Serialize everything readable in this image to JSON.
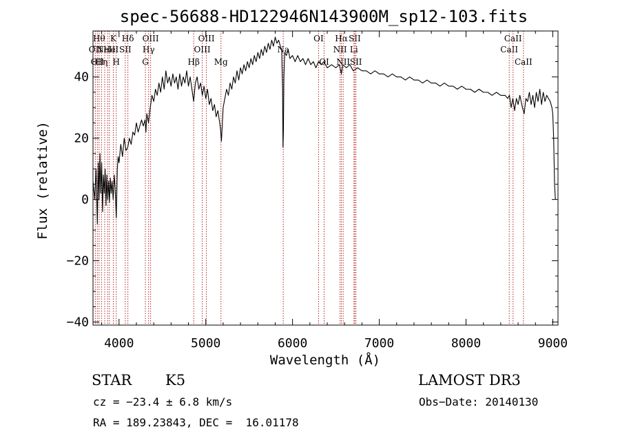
{
  "chart_data": {
    "type": "line",
    "title": "spec-56688-HD122946N143900M_sp12-103.fits",
    "xlabel": "Wavelength (Å)",
    "ylabel": "Flux (relative)",
    "xlim": [
      3700,
      9060
    ],
    "ylim": [
      -41,
      55
    ],
    "x_ticks": [
      4000,
      5000,
      6000,
      7000,
      8000,
      9000
    ],
    "x_tick_labels": [
      "4000",
      "5000",
      "6000",
      "7000",
      "8000",
      "9000"
    ],
    "y_ticks": [
      -40,
      -20,
      0,
      20,
      40
    ],
    "y_tick_labels": [
      "−40",
      "−20",
      "0",
      "20",
      "40"
    ],
    "series": [
      {
        "name": "flux",
        "points": [
          [
            3700,
            6
          ],
          [
            3720,
            0
          ],
          [
            3735,
            10
          ],
          [
            3750,
            -8
          ],
          [
            3760,
            12
          ],
          [
            3770,
            0
          ],
          [
            3780,
            15
          ],
          [
            3790,
            2
          ],
          [
            3800,
            12
          ],
          [
            3810,
            -4
          ],
          [
            3820,
            8
          ],
          [
            3830,
            2
          ],
          [
            3840,
            10
          ],
          [
            3850,
            -2
          ],
          [
            3860,
            8
          ],
          [
            3870,
            0
          ],
          [
            3880,
            6
          ],
          [
            3890,
            -1
          ],
          [
            3900,
            7
          ],
          [
            3910,
            2
          ],
          [
            3920,
            6
          ],
          [
            3933,
            0
          ],
          [
            3945,
            8
          ],
          [
            3955,
            4
          ],
          [
            3968,
            -6
          ],
          [
            3980,
            10
          ],
          [
            3990,
            14
          ],
          [
            4000,
            12
          ],
          [
            4020,
            18
          ],
          [
            4040,
            14
          ],
          [
            4060,
            20
          ],
          [
            4080,
            16
          ],
          [
            4100,
            17
          ],
          [
            4120,
            20
          ],
          [
            4140,
            18
          ],
          [
            4160,
            22
          ],
          [
            4180,
            21
          ],
          [
            4200,
            25
          ],
          [
            4220,
            22
          ],
          [
            4240,
            24
          ],
          [
            4260,
            26
          ],
          [
            4280,
            24
          ],
          [
            4300,
            26
          ],
          [
            4310,
            22
          ],
          [
            4320,
            28
          ],
          [
            4340,
            25
          ],
          [
            4360,
            30
          ],
          [
            4380,
            34
          ],
          [
            4400,
            32
          ],
          [
            4420,
            36
          ],
          [
            4440,
            34
          ],
          [
            4460,
            38
          ],
          [
            4480,
            35
          ],
          [
            4500,
            40
          ],
          [
            4520,
            36
          ],
          [
            4540,
            42
          ],
          [
            4560,
            38
          ],
          [
            4580,
            40
          ],
          [
            4600,
            37
          ],
          [
            4620,
            41
          ],
          [
            4640,
            38
          ],
          [
            4660,
            40
          ],
          [
            4680,
            36
          ],
          [
            4700,
            41
          ],
          [
            4720,
            37
          ],
          [
            4740,
            40
          ],
          [
            4760,
            38
          ],
          [
            4780,
            42
          ],
          [
            4800,
            37
          ],
          [
            4820,
            40
          ],
          [
            4840,
            36
          ],
          [
            4860,
            32
          ],
          [
            4880,
            38
          ],
          [
            4900,
            40
          ],
          [
            4920,
            36
          ],
          [
            4940,
            38
          ],
          [
            4960,
            34
          ],
          [
            4980,
            37
          ],
          [
            5000,
            33
          ],
          [
            5020,
            36
          ],
          [
            5040,
            31
          ],
          [
            5060,
            33
          ],
          [
            5080,
            29
          ],
          [
            5100,
            31
          ],
          [
            5120,
            27
          ],
          [
            5140,
            29
          ],
          [
            5160,
            25
          ],
          [
            5170,
            23
          ],
          [
            5180,
            19
          ],
          [
            5190,
            24
          ],
          [
            5200,
            30
          ],
          [
            5220,
            33
          ],
          [
            5240,
            36
          ],
          [
            5260,
            34
          ],
          [
            5280,
            38
          ],
          [
            5300,
            36
          ],
          [
            5320,
            40
          ],
          [
            5340,
            38
          ],
          [
            5360,
            42
          ],
          [
            5380,
            39
          ],
          [
            5400,
            43
          ],
          [
            5420,
            41
          ],
          [
            5440,
            44
          ],
          [
            5460,
            42
          ],
          [
            5480,
            45
          ],
          [
            5500,
            43
          ],
          [
            5520,
            46
          ],
          [
            5540,
            44
          ],
          [
            5560,
            47
          ],
          [
            5580,
            45
          ],
          [
            5600,
            48
          ],
          [
            5620,
            46
          ],
          [
            5640,
            49
          ],
          [
            5660,
            47
          ],
          [
            5680,
            50
          ],
          [
            5700,
            48
          ],
          [
            5720,
            51
          ],
          [
            5740,
            49
          ],
          [
            5760,
            52
          ],
          [
            5780,
            50
          ],
          [
            5800,
            53
          ],
          [
            5820,
            51
          ],
          [
            5840,
            52
          ],
          [
            5860,
            50
          ],
          [
            5875,
            49
          ],
          [
            5885,
            36
          ],
          [
            5890,
            17
          ],
          [
            5895,
            22
          ],
          [
            5900,
            40
          ],
          [
            5910,
            48
          ],
          [
            5930,
            47
          ],
          [
            5950,
            49
          ],
          [
            5970,
            46
          ],
          [
            6000,
            47
          ],
          [
            6030,
            45
          ],
          [
            6060,
            47
          ],
          [
            6090,
            45
          ],
          [
            6120,
            46
          ],
          [
            6150,
            44
          ],
          [
            6180,
            46
          ],
          [
            6210,
            44
          ],
          [
            6240,
            45
          ],
          [
            6270,
            43
          ],
          [
            6300,
            45
          ],
          [
            6330,
            44
          ],
          [
            6360,
            45
          ],
          [
            6400,
            43
          ],
          [
            6450,
            44
          ],
          [
            6500,
            43
          ],
          [
            6540,
            44
          ],
          [
            6563,
            41
          ],
          [
            6580,
            44
          ],
          [
            6620,
            43
          ],
          [
            6660,
            44
          ],
          [
            6700,
            42
          ],
          [
            6750,
            43
          ],
          [
            6800,
            42
          ],
          [
            6850,
            42
          ],
          [
            6900,
            41
          ],
          [
            6950,
            42
          ],
          [
            7000,
            41
          ],
          [
            7050,
            41
          ],
          [
            7100,
            40
          ],
          [
            7150,
            41
          ],
          [
            7200,
            40
          ],
          [
            7250,
            40
          ],
          [
            7300,
            39
          ],
          [
            7350,
            40
          ],
          [
            7400,
            39
          ],
          [
            7450,
            39
          ],
          [
            7500,
            38
          ],
          [
            7550,
            39
          ],
          [
            7600,
            38
          ],
          [
            7650,
            38
          ],
          [
            7700,
            37
          ],
          [
            7750,
            38
          ],
          [
            7800,
            37
          ],
          [
            7850,
            37
          ],
          [
            7900,
            36
          ],
          [
            7950,
            37
          ],
          [
            8000,
            36
          ],
          [
            8050,
            36
          ],
          [
            8100,
            35
          ],
          [
            8150,
            36
          ],
          [
            8200,
            35
          ],
          [
            8250,
            35
          ],
          [
            8300,
            34
          ],
          [
            8350,
            35
          ],
          [
            8400,
            34
          ],
          [
            8450,
            34
          ],
          [
            8480,
            33
          ],
          [
            8500,
            34
          ],
          [
            8520,
            30
          ],
          [
            8540,
            33
          ],
          [
            8560,
            29
          ],
          [
            8580,
            33
          ],
          [
            8600,
            31
          ],
          [
            8620,
            34
          ],
          [
            8650,
            30
          ],
          [
            8670,
            28
          ],
          [
            8690,
            33
          ],
          [
            8710,
            32
          ],
          [
            8730,
            35
          ],
          [
            8750,
            31
          ],
          [
            8770,
            34
          ],
          [
            8790,
            30
          ],
          [
            8810,
            35
          ],
          [
            8830,
            32
          ],
          [
            8850,
            36
          ],
          [
            8870,
            31
          ],
          [
            8890,
            35
          ],
          [
            8910,
            32
          ],
          [
            8930,
            34
          ],
          [
            8950,
            33
          ],
          [
            8970,
            32
          ],
          [
            8990,
            30
          ],
          [
            9000,
            28
          ],
          [
            9010,
            20
          ],
          [
            9020,
            5
          ],
          [
            9030,
            0
          ]
        ]
      }
    ],
    "line_marker_color": "#b22222",
    "line_markers": [
      {
        "x": 3727,
        "label": "OII",
        "row": 1
      },
      {
        "x": 3750,
        "label": "OII",
        "row": 2
      },
      {
        "x": 3770,
        "label": "Hθ",
        "row": 0
      },
      {
        "x": 3798,
        "label": "Hη",
        "row": 2
      },
      {
        "x": 3835,
        "label": "",
        "row": 0
      },
      {
        "x": 3869,
        "label": "NeIII",
        "row": 1
      },
      {
        "x": 3889,
        "label": "He",
        "row": 1
      },
      {
        "x": 3934,
        "label": "K",
        "row": 0
      },
      {
        "x": 3968,
        "label": "H",
        "row": 2
      },
      {
        "x": 4072,
        "label": "SII",
        "row": 1
      },
      {
        "x": 4102,
        "label": "Hδ",
        "row": 0
      },
      {
        "x": 4304,
        "label": "G",
        "row": 2
      },
      {
        "x": 4341,
        "label": "Hγ",
        "row": 1
      },
      {
        "x": 4364,
        "label": "OIII",
        "row": 0
      },
      {
        "x": 4861,
        "label": "Hβ",
        "row": 2
      },
      {
        "x": 4959,
        "label": "OIII",
        "row": 1
      },
      {
        "x": 5007,
        "label": "OIII",
        "row": 0
      },
      {
        "x": 5175,
        "label": "Mg",
        "row": 2
      },
      {
        "x": 5893,
        "label": "Na",
        "row": 1
      },
      {
        "x": 6300,
        "label": "OI",
        "row": 0
      },
      {
        "x": 6364,
        "label": "OI",
        "row": 2
      },
      {
        "x": 6548,
        "label": "NII",
        "row": 1
      },
      {
        "x": 6563,
        "label": "Hα",
        "row": 0
      },
      {
        "x": 6584,
        "label": "NII",
        "row": 2
      },
      {
        "x": 6708,
        "label": "Li",
        "row": 1
      },
      {
        "x": 6717,
        "label": "SII",
        "row": 0
      },
      {
        "x": 6731,
        "label": "SII",
        "row": 2
      },
      {
        "x": 8498,
        "label": "CaII",
        "row": 1
      },
      {
        "x": 8542,
        "label": "CaII",
        "row": 0
      },
      {
        "x": 8662,
        "label": "CaII",
        "row": 2
      }
    ]
  },
  "info": {
    "object_class": "STAR",
    "subclass": "K5",
    "survey": "LAMOST DR3",
    "cz": "cz = −23.4 ± 6.8 km/s",
    "obs_date": "Obs−Date: 20140130",
    "coords": "RA = 189.23843, DEC =  16.01178"
  }
}
